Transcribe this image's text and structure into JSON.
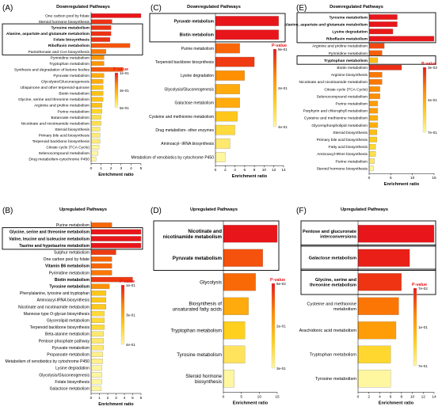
{
  "colors": {
    "low": "#fff6a0",
    "mid": "#ffd21e",
    "high": "#ff8a00",
    "top": "#e8161a",
    "border": "#888888",
    "box": "#000000"
  },
  "chart_data": [
    {
      "id": "A",
      "panel_label": "(A)",
      "type": "bar",
      "orientation": "horizontal",
      "title": "Downregulated Pathways",
      "xlabel": "Enrichment ratio",
      "xlim": [
        0,
        5
      ],
      "xticks": [
        0,
        1,
        2,
        3,
        4,
        5
      ],
      "legend": {
        "title": "P-value",
        "ticks": [
          "1e-01",
          "3e-01",
          "5e-01"
        ],
        "placement": "right"
      },
      "highlight_groups": [
        [
          2,
          6
        ]
      ],
      "categories": [
        "One carbon pool by folate",
        "Steroid hormone biosynthesis",
        "Tyrosine metabolism",
        "Alanine, aspartate and glutamate metabolism",
        "Folate biosynthesis",
        "Riboflavin metabolism",
        "Pantothenate and CoA biosynthesis",
        "Pyrimidine metabolism",
        "Tryptophan metabolism",
        "Synthesis and degradation of ketone bodies",
        "Pyruvate metabolism",
        "Glycolysis/Gluconeogenesis",
        "Ubiquinone and other terpenoid-quinone",
        "Biotin metabolism",
        "Glycine, serine and threonine metabolism",
        "Arginine and proline metabolism",
        "Purine metabolism",
        "Butanoate metabolism",
        "Nicotinate and nicotinamide metabolism",
        "Steroid biosynthesis",
        "Primary bile acid biosynthesis",
        "Terpenoid backbone biosynthesis",
        "Citrate cycle (TCA Cycle)",
        "Selenocompound metabolism",
        "Drug metabolism-cytochrome P450"
      ],
      "values": [
        5.0,
        2.1,
        2.0,
        2.0,
        1.9,
        3.9,
        1.5,
        1.3,
        1.3,
        3.2,
        1.3,
        1.2,
        1.2,
        1.2,
        1.2,
        1.1,
        1.1,
        1.0,
        1.0,
        0.9,
        0.9,
        0.9,
        0.8,
        0.7,
        0.5
      ],
      "pvalues": [
        0.01,
        0.05,
        0.05,
        0.05,
        0.05,
        0.1,
        0.15,
        0.2,
        0.2,
        0.1,
        0.25,
        0.25,
        0.3,
        0.3,
        0.3,
        0.3,
        0.35,
        0.4,
        0.4,
        0.45,
        0.45,
        0.45,
        0.5,
        0.5,
        0.5
      ],
      "bold": [
        2,
        3,
        4,
        5
      ]
    },
    {
      "id": "C",
      "panel_label": "(C)",
      "type": "bar",
      "orientation": "horizontal",
      "title": "Downregulated Pathways",
      "xlabel": "Enrichment ratio",
      "xlim": [
        0,
        14
      ],
      "xticks": [
        0,
        2,
        4,
        6,
        8,
        10,
        12,
        14
      ],
      "legend": {
        "title": "P-value",
        "ticks": [
          "8e-01",
          "2e-01",
          "4e-01"
        ],
        "placement": "right"
      },
      "highlight_groups": [
        [
          0,
          1
        ]
      ],
      "categories": [
        "Pyruvate metabolism",
        "Biotin metabolism",
        "Purine metabolism",
        "Terpenoid backbone biosynthesis",
        "Lysine degradation",
        "Glycolysis/Gluconeogenesis",
        "Galactose metabolism",
        "Cysteine and methionine metabolism",
        "Drug metabolism- other enzymes",
        "Aminoacyl- tRNA biosynthesis",
        "Metabolism of xenobiotics by cytochrome P450"
      ],
      "values": [
        13.0,
        13.0,
        5.0,
        8.0,
        6.0,
        5.0,
        5.0,
        4.5,
        4.0,
        3.0,
        2.0
      ],
      "pvalues": [
        0.01,
        0.01,
        0.1,
        0.05,
        0.15,
        0.2,
        0.2,
        0.25,
        0.3,
        0.35,
        0.4
      ],
      "bold": [
        0,
        1
      ]
    },
    {
      "id": "E",
      "panel_label": "(E)",
      "type": "bar",
      "orientation": "horizontal",
      "title": "Downregulated Pathways",
      "xlabel": "Enrichment ratio",
      "xlim": [
        0,
        15
      ],
      "xticks": [
        0,
        5,
        10,
        15
      ],
      "legend": {
        "title": "P-value",
        "ticks": [
          "3e-03",
          "4e-01",
          "7e-01"
        ],
        "placement": "right"
      },
      "highlight_groups": [
        [
          0,
          3
        ],
        [
          6,
          6
        ]
      ],
      "categories": [
        "Tyrosine metabolism",
        "Alanine, aspartate and glutamate metabolism",
        "Lysine degradation",
        "Riboflavin metabolism",
        "Arginine and proline metabolism",
        "Pyrimidine metabolism",
        "Tryptophan metabolism",
        "Biotin metabolism",
        "Arginine biosynthesis",
        "Nicotinate and nicotinamide metabolism",
        "Citrate cycle (TCA Cycle)",
        "Selenocompound metabolism",
        "Purine metabolism",
        "Porphyrin and chlorophyll metabolism",
        "Cysteine and methionine metabolism",
        "Glycerophospholipid metabolism",
        "Steroid biosynthesis",
        "Primary bile acid biosynthesis",
        "Fatty acid biosynthesis",
        "Aminoacyl-tRNA biosynthesis",
        "Purine metabolism",
        "Steroid hormone biosynthesis"
      ],
      "values": [
        6.5,
        6.5,
        5.5,
        15.0,
        3.5,
        3.0,
        2.0,
        7.5,
        3.0,
        3.0,
        2.5,
        2.5,
        2.0,
        2.0,
        2.0,
        2.0,
        1.8,
        1.8,
        1.5,
        1.5,
        1.2,
        1.0
      ],
      "pvalues": [
        0.003,
        0.003,
        0.01,
        0.003,
        0.1,
        0.15,
        0.4,
        0.05,
        0.2,
        0.2,
        0.25,
        0.25,
        0.3,
        0.3,
        0.35,
        0.35,
        0.4,
        0.45,
        0.5,
        0.55,
        0.6,
        0.7
      ],
      "bold": [
        0,
        1,
        2,
        3,
        6
      ]
    },
    {
      "id": "B",
      "panel_label": "(B)",
      "type": "bar",
      "orientation": "horizontal",
      "title": "Upregulated Pathways",
      "xlabel": "Enrichment ratio",
      "xlim": [
        0,
        6
      ],
      "xticks": [
        0,
        1,
        2,
        3,
        4,
        5,
        6
      ],
      "legend": {
        "title": "P-value",
        "ticks": [
          "1e-01",
          "3e-01",
          "4e-01"
        ],
        "placement": "right"
      },
      "highlight_groups": [
        [
          1,
          3
        ]
      ],
      "categories": [
        "Purine metabolism",
        "Glycine, serine and threonine metabolism",
        "Valine, leucine and isoleucine metabolism",
        "Taurine and hypotaurine metabolism",
        "Sulphur metabolism",
        "One carbon pool by folate",
        "Vitamin B6 metabolism",
        "Pyrimidine metabolism",
        "Biotin metabolism",
        "Tyrosine metabolism",
        "Phenylalanine, tyrosine and tryptophan",
        "Aminoacyl-tRNA biosynthesis",
        "Nicotinate and nicotinamide metabolism",
        "Mannose type O-glycan biosynthesis",
        "Glycerolipid metabolism",
        "Terpenoid backbone biosynthesis",
        "Beta-alanine metabolism",
        "Pentose phosphate pathway",
        "Pyruvate metabolism",
        "Propanoate metabolism",
        "Metabolism of xenobiotics by cytochrome P450",
        "Lysine degradation",
        "Glycolysis/Gluconeogenesis",
        "Folate biosynthesis",
        "Galactose metabolism"
      ],
      "values": [
        2.5,
        6.0,
        6.0,
        6.0,
        3.0,
        2.5,
        2.5,
        2.5,
        5.0,
        2.2,
        1.8,
        1.8,
        1.8,
        1.6,
        1.6,
        1.6,
        1.5,
        1.5,
        1.5,
        1.4,
        1.4,
        1.3,
        1.3,
        1.3,
        1.2
      ],
      "pvalues": [
        0.1,
        0.01,
        0.01,
        0.01,
        0.05,
        0.1,
        0.1,
        0.12,
        0.05,
        0.15,
        0.25,
        0.25,
        0.25,
        0.3,
        0.3,
        0.3,
        0.35,
        0.35,
        0.35,
        0.38,
        0.38,
        0.4,
        0.4,
        0.4,
        0.4
      ],
      "bold": [
        1,
        2,
        3,
        6,
        8,
        9
      ]
    },
    {
      "id": "D",
      "panel_label": "(D)",
      "type": "bar",
      "orientation": "horizontal",
      "title": "Upregulated Pathways",
      "xlabel": "Enrichment ratio",
      "xlim": [
        0,
        15
      ],
      "xticks": [
        0,
        5,
        10,
        15
      ],
      "legend": {
        "title": "P-value",
        "ticks": [
          "6e-02",
          "2e-01",
          "3e-01"
        ],
        "placement": "right"
      },
      "highlight_groups": [
        [
          0,
          1
        ]
      ],
      "categories": [
        "Nicotinate and nicotinamide metabolism",
        "Pyruvate metabolism",
        "Glycolysis",
        "Biosynthesis of unsaturated fatty acids",
        "Tryptophan metabolism",
        "Tyrosine metabolism",
        "Steroid hormone biosynthesis"
      ],
      "values": [
        15.0,
        11.0,
        9.0,
        7.0,
        6.0,
        6.0,
        3.0
      ],
      "pvalues": [
        0.01,
        0.06,
        0.08,
        0.15,
        0.2,
        0.25,
        0.3
      ],
      "bold": [
        0,
        1
      ]
    },
    {
      "id": "F",
      "panel_label": "(F)",
      "type": "bar",
      "orientation": "horizontal",
      "title": "Upregulated Pathways",
      "xlabel": "Enrichment ratio",
      "xlim": [
        0,
        14
      ],
      "xticks": [
        0,
        2,
        4,
        6,
        8,
        10,
        12,
        14
      ],
      "legend": {
        "title": "P-value",
        "ticks": [
          "7e-02",
          "1e-01",
          "7e-01"
        ],
        "placement": "right"
      },
      "highlight_groups": [
        [
          0,
          0
        ],
        [
          1,
          1
        ],
        [
          2,
          2
        ]
      ],
      "categories": [
        "Pentose and glucuronate interconversions",
        "Galactose metabolism",
        "Glycine, serine and threonine metabolism",
        "Cysteine and methionine metabolism",
        "Arachidonic acid metabolism",
        "Tryptophan metabolism",
        "Tyrosine metabolism"
      ],
      "values": [
        14.0,
        9.5,
        8.0,
        7.5,
        7.0,
        6.0,
        6.0
      ],
      "pvalues": [
        0.01,
        0.03,
        0.07,
        0.2,
        0.3,
        0.5,
        0.7
      ],
      "bold": [
        0,
        1,
        2
      ]
    }
  ]
}
